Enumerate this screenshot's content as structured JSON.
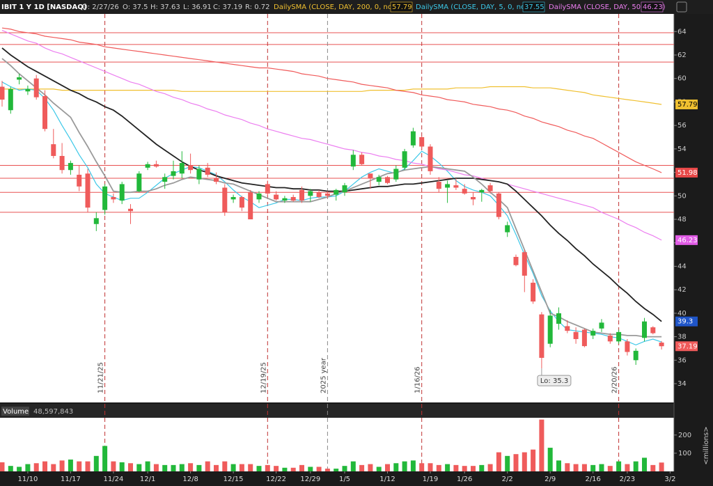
{
  "chart_data": {
    "type": "candlestick",
    "title": "IBIT 1 Y 1D [NASDAQ]",
    "quote_fields": [
      "D: 2/27/26",
      "O: 37.5",
      "H: 37.63",
      "L: 36.91",
      "C: 37.19",
      "R: 0.72"
    ],
    "categories": [
      null,
      null,
      null,
      "11/10",
      null,
      null,
      null,
      null,
      "11/17",
      null,
      null,
      null,
      null,
      "11/24",
      null,
      null,
      null,
      "12/1",
      null,
      null,
      null,
      null,
      "12/8",
      null,
      null,
      null,
      null,
      "12/15",
      null,
      null,
      null,
      null,
      "12/22",
      null,
      null,
      null,
      "12/29",
      null,
      null,
      null,
      "1/5",
      null,
      null,
      null,
      null,
      "1/12",
      null,
      null,
      null,
      null,
      "1/19",
      null,
      null,
      null,
      "1/26",
      null,
      null,
      null,
      null,
      "2/2",
      null,
      null,
      null,
      null,
      "2/9",
      null,
      null,
      null,
      null,
      "2/16",
      null,
      null,
      null,
      "2/23",
      null,
      null,
      null,
      null,
      "3/2"
    ],
    "markers": [
      null,
      null,
      null,
      null,
      null,
      null,
      null,
      null,
      null,
      null,
      null,
      null,
      "11/21/25",
      null,
      null,
      null,
      null,
      null,
      null,
      null,
      null,
      null,
      null,
      null,
      null,
      null,
      null,
      null,
      null,
      null,
      null,
      "12/19/25",
      null,
      null,
      null,
      null,
      null,
      null,
      "2025 year",
      null,
      null,
      null,
      null,
      null,
      null,
      null,
      null,
      null,
      null,
      "1/16/26",
      null,
      null,
      null,
      null,
      null,
      null,
      null,
      null,
      null,
      null,
      null,
      null,
      null,
      null,
      null,
      null,
      null,
      null,
      null,
      null,
      null,
      null,
      "2/20/26",
      null,
      null,
      null,
      null,
      null,
      null
    ],
    "candles": {
      "up_color": "#22b83a",
      "down_color": "#ef5b5b",
      "open": [
        59.3,
        57.3,
        59.9,
        58.9,
        60.0,
        58.5,
        54.4,
        53.4,
        52.2,
        51.8,
        51.9,
        47.6,
        48.8,
        49.9,
        49.6,
        48.9,
        50.4,
        52.4,
        52.7,
        51.2,
        51.7,
        51.9,
        52.6,
        51.4,
        52.4,
        51.5,
        50.7,
        49.7,
        49.9,
        50.3,
        49.7,
        51.0,
        50.1,
        49.6,
        49.9,
        50.5,
        50.0,
        50.3,
        50.2,
        50.1,
        50.3,
        52.5,
        53.5,
        51.9,
        51.2,
        51.6,
        51.4,
        52.4,
        54.3,
        55.0,
        54.2,
        51.2,
        50.7,
        50.9,
        50.6,
        49.9,
        50.3,
        50.9,
        50.2,
        46.9,
        44.8,
        45.2,
        42.6,
        39.9,
        37.4,
        39.1,
        38.9,
        38.4,
        38.6,
        38.1,
        38.7,
        38.1,
        37.6,
        37.6,
        36.0,
        37.9,
        38.8,
        37.5,
        null
      ],
      "high": [
        59.8,
        59.3,
        60.4,
        59.4,
        60.3,
        59.0,
        55.7,
        54.5,
        53.0,
        52.6,
        52.3,
        48.6,
        51.0,
        50.2,
        51.2,
        49.3,
        52.1,
        52.9,
        53.0,
        51.9,
        53.0,
        53.8,
        53.6,
        52.6,
        52.8,
        52.0,
        51.0,
        50.1,
        50.0,
        50.5,
        50.4,
        51.3,
        50.4,
        50.0,
        50.1,
        50.8,
        50.6,
        50.5,
        50.4,
        50.6,
        51.1,
        53.9,
        53.7,
        51.9,
        51.8,
        51.7,
        52.6,
        54.0,
        55.8,
        55.1,
        54.4,
        51.6,
        51.3,
        51.5,
        51.0,
        50.3,
        50.6,
        51.1,
        50.3,
        47.8,
        45.0,
        45.4,
        42.9,
        40.1,
        40.3,
        40.5,
        39.4,
        38.8,
        38.7,
        38.7,
        39.5,
        38.3,
        38.6,
        37.8,
        37.0,
        39.6,
        38.9,
        37.63,
        null
      ],
      "low": [
        57.6,
        57.0,
        59.5,
        58.6,
        58.2,
        55.5,
        53.2,
        51.9,
        51.8,
        50.4,
        48.6,
        47.0,
        48.4,
        49.4,
        49.3,
        47.6,
        50.3,
        52.2,
        52.4,
        50.6,
        51.4,
        51.5,
        51.9,
        51.0,
        51.6,
        51.0,
        48.3,
        49.4,
        48.7,
        48.0,
        49.4,
        50.0,
        49.6,
        49.4,
        49.5,
        49.4,
        49.5,
        49.8,
        49.8,
        49.6,
        50.0,
        52.2,
        52.6,
        50.6,
        50.9,
        51.0,
        51.2,
        52.2,
        54.1,
        54.0,
        51.8,
        50.3,
        49.4,
        50.5,
        50.1,
        49.2,
        49.5,
        50.2,
        48.0,
        46.5,
        44.0,
        41.8,
        40.8,
        35.3,
        37.1,
        38.6,
        38.3,
        37.4,
        37.1,
        37.8,
        38.4,
        37.4,
        37.4,
        36.4,
        35.6,
        37.6,
        38.2,
        36.91,
        null
      ],
      "close": [
        58.2,
        59.1,
        60.1,
        59.1,
        58.4,
        55.7,
        53.4,
        52.2,
        52.8,
        50.8,
        49.0,
        48.1,
        50.8,
        49.7,
        51.0,
        48.7,
        51.9,
        52.7,
        52.5,
        51.6,
        52.1,
        52.8,
        52.2,
        52.3,
        51.8,
        51.2,
        48.6,
        49.9,
        49.0,
        48.0,
        50.2,
        50.2,
        49.7,
        49.8,
        49.6,
        49.6,
        50.4,
        49.9,
        50.0,
        50.5,
        50.9,
        53.5,
        52.7,
        51.5,
        51.6,
        51.1,
        52.3,
        53.8,
        55.5,
        54.2,
        52.1,
        50.6,
        51.0,
        50.7,
        50.2,
        49.7,
        50.5,
        50.4,
        48.2,
        47.5,
        44.1,
        43.2,
        41.0,
        36.2,
        39.8,
        40.0,
        38.5,
        37.8,
        37.2,
        38.5,
        39.2,
        37.6,
        38.4,
        36.7,
        36.8,
        39.3,
        38.3,
        37.19,
        null
      ]
    },
    "series": [
      {
        "name": "DailySMA (CLOSE, DAY, 200, 0, no)",
        "color": "#f0c030",
        "box_color": "#f0c030",
        "box_text": "#000000",
        "values": [
          59.1,
          59.1,
          59.1,
          59.1,
          59.1,
          59.1,
          59.1,
          59.0,
          59.0,
          59.0,
          59.0,
          59.0,
          59.0,
          59.0,
          59.0,
          59.0,
          59.0,
          59.0,
          59.0,
          59.0,
          59.0,
          58.9,
          58.9,
          58.9,
          58.9,
          58.9,
          58.9,
          58.9,
          58.9,
          58.9,
          58.9,
          58.9,
          58.9,
          58.9,
          58.9,
          58.9,
          58.9,
          58.9,
          58.9,
          58.9,
          58.9,
          58.9,
          58.9,
          59.0,
          59.0,
          59.0,
          59.0,
          59.0,
          59.1,
          59.1,
          59.1,
          59.1,
          59.1,
          59.2,
          59.2,
          59.2,
          59.2,
          59.3,
          59.3,
          59.3,
          59.3,
          59.3,
          59.2,
          59.2,
          59.2,
          59.1,
          59.0,
          58.9,
          58.8,
          58.6,
          58.5,
          58.4,
          58.3,
          58.2,
          58.1,
          58.0,
          57.9,
          57.79,
          null
        ]
      },
      {
        "name": "DailySMA (CLOSE, DAY, 5, 0, no)",
        "color": "#3cc8e8",
        "values": [
          59.7,
          59.3,
          59.0,
          59.1,
          59.0,
          58.3,
          57.3,
          56.0,
          54.8,
          53.5,
          52.4,
          51.0,
          50.2,
          49.9,
          49.6,
          49.8,
          49.8,
          50.3,
          50.9,
          51.5,
          51.9,
          52.2,
          52.5,
          52.4,
          52.1,
          51.8,
          51.2,
          50.5,
          49.9,
          49.5,
          49.0,
          49.2,
          49.4,
          49.7,
          49.7,
          49.6,
          49.8,
          49.9,
          49.9,
          50.0,
          50.4,
          51.0,
          51.6,
          52.0,
          52.3,
          52.1,
          51.9,
          52.3,
          53.0,
          53.8,
          53.4,
          52.8,
          52.1,
          51.3,
          50.8,
          50.5,
          50.3,
          50.0,
          49.2,
          48.3,
          46.7,
          45.0,
          43.4,
          41.5,
          40.2,
          39.3,
          38.6,
          38.5,
          38.4,
          38.3,
          38.2,
          38.0,
          37.9,
          37.6,
          37.3,
          37.6,
          37.8,
          37.55,
          null
        ]
      },
      {
        "name": "DailySMA (CLOSE, DAY, 50, 0, no)",
        "color": "#ec7ef0",
        "box_color": "#e15ce6",
        "box_text": "#ffffff",
        "values": [
          64.1,
          63.8,
          63.5,
          63.2,
          63.0,
          62.6,
          62.3,
          62.1,
          61.8,
          61.5,
          61.2,
          60.9,
          60.6,
          60.3,
          60.0,
          59.7,
          59.5,
          59.2,
          58.9,
          58.7,
          58.4,
          58.2,
          57.9,
          57.7,
          57.4,
          57.2,
          56.9,
          56.7,
          56.5,
          56.2,
          56.0,
          55.7,
          55.5,
          55.3,
          55.1,
          54.9,
          54.8,
          54.6,
          54.4,
          54.2,
          54.0,
          53.9,
          53.7,
          53.6,
          53.4,
          53.3,
          53.1,
          53.0,
          52.8,
          52.7,
          52.5,
          52.3,
          52.2,
          52.0,
          51.8,
          51.7,
          51.5,
          51.3,
          51.2,
          51.0,
          50.8,
          50.6,
          50.4,
          50.2,
          50.0,
          49.8,
          49.6,
          49.4,
          49.2,
          49.0,
          48.6,
          48.3,
          48.0,
          47.6,
          47.3,
          46.9,
          46.6,
          46.23,
          null
        ]
      },
      {
        "color": "#f05a5a",
        "box_color": "#e84848",
        "box_text": "#ffffff",
        "values": [
          64.3,
          64.2,
          64.0,
          63.9,
          63.8,
          63.6,
          63.5,
          63.4,
          63.3,
          63.1,
          63.0,
          62.9,
          62.7,
          62.6,
          62.5,
          62.4,
          62.3,
          62.2,
          62.1,
          62.0,
          61.9,
          61.8,
          61.7,
          61.6,
          61.5,
          61.4,
          61.3,
          61.2,
          61.1,
          61.0,
          60.9,
          60.9,
          60.8,
          60.7,
          60.6,
          60.4,
          60.3,
          60.2,
          60.0,
          59.9,
          59.8,
          59.7,
          59.5,
          59.4,
          59.3,
          59.2,
          59.0,
          58.9,
          58.8,
          58.6,
          58.5,
          58.4,
          58.2,
          58.1,
          58.0,
          57.8,
          57.7,
          57.6,
          57.4,
          57.3,
          57.1,
          56.8,
          56.6,
          56.3,
          56.1,
          55.9,
          55.6,
          55.4,
          55.1,
          54.9,
          54.5,
          54.1,
          53.7,
          53.3,
          52.9,
          52.6,
          52.3,
          51.98,
          null
        ]
      },
      {
        "color": "#222222",
        "box_color": "#1f55c8",
        "box_text": "#ffffff",
        "values": [
          62.6,
          62.0,
          61.5,
          61.0,
          60.6,
          60.2,
          59.8,
          59.4,
          59.0,
          58.7,
          58.3,
          58.0,
          57.6,
          57.3,
          56.8,
          56.2,
          55.6,
          55.0,
          54.4,
          53.9,
          53.4,
          52.9,
          52.5,
          52.2,
          52.0,
          51.7,
          51.5,
          51.3,
          51.1,
          51.0,
          50.9,
          50.8,
          50.7,
          50.7,
          50.6,
          50.6,
          50.5,
          50.5,
          50.4,
          50.4,
          50.4,
          50.5,
          50.6,
          50.7,
          50.8,
          50.8,
          50.9,
          51.0,
          51.0,
          51.1,
          51.2,
          51.3,
          51.4,
          51.5,
          51.5,
          51.5,
          51.4,
          51.3,
          51.2,
          51.0,
          50.4,
          49.7,
          49.0,
          48.3,
          47.5,
          46.8,
          46.2,
          45.5,
          44.9,
          44.2,
          43.6,
          43.0,
          42.3,
          41.7,
          41.0,
          40.4,
          39.9,
          39.3,
          null
        ]
      },
      {
        "color": "#9a9a9a",
        "values": [
          61.7,
          61.1,
          60.4,
          59.8,
          59.2,
          58.6,
          57.9,
          57.3,
          56.7,
          55.4,
          54.2,
          52.9,
          51.7,
          50.4,
          50.3,
          50.3,
          50.4,
          50.4,
          50.6,
          50.9,
          51.1,
          51.4,
          51.6,
          51.5,
          51.4,
          51.3,
          51.1,
          51.0,
          50.7,
          50.4,
          50.1,
          49.8,
          49.5,
          49.5,
          49.5,
          49.5,
          49.5,
          49.7,
          49.9,
          50.2,
          50.4,
          50.7,
          51.0,
          51.3,
          51.6,
          51.9,
          52.0,
          52.2,
          52.3,
          52.4,
          52.5,
          52.4,
          52.3,
          52.2,
          52.1,
          51.6,
          51.0,
          50.3,
          49.7,
          49.0,
          47.2,
          45.4,
          43.6,
          41.8,
          40.0,
          39.7,
          39.3,
          39.0,
          38.7,
          38.4,
          38.3,
          38.2,
          38.2,
          38.1,
          38.1,
          38.0,
          38.0,
          38.0,
          null
        ]
      }
    ],
    "price_lines": {
      "color": "#e85050",
      "values": [
        63.9,
        62.9,
        61.4,
        52.6,
        51.5,
        50.3,
        48.6
      ]
    },
    "low_label": "Lo: 35.3",
    "ylim": [
      32.4,
      65.5
    ],
    "yticks": [
      34,
      36,
      38,
      40,
      42,
      44,
      46,
      48,
      50,
      52,
      54,
      56,
      58,
      60,
      62,
      64
    ],
    "volume": {
      "label": "Volume",
      "last_text": "48,597,843",
      "unit_label": "<millions>",
      "ylim": [
        0,
        295
      ],
      "yticks": [
        100,
        200
      ],
      "values": [
        50,
        30,
        25,
        40,
        45,
        55,
        40,
        60,
        65,
        55,
        55,
        85,
        140,
        55,
        50,
        45,
        40,
        55,
        40,
        35,
        35,
        40,
        45,
        35,
        55,
        35,
        55,
        40,
        40,
        40,
        30,
        35,
        30,
        20,
        20,
        35,
        25,
        25,
        15,
        15,
        30,
        55,
        35,
        40,
        25,
        40,
        45,
        55,
        60,
        45,
        45,
        35,
        40,
        35,
        30,
        30,
        35,
        40,
        105,
        85,
        95,
        105,
        120,
        285,
        130,
        60,
        45,
        40,
        40,
        35,
        40,
        30,
        55,
        40,
        55,
        75,
        35,
        48.6,
        null
      ]
    }
  }
}
